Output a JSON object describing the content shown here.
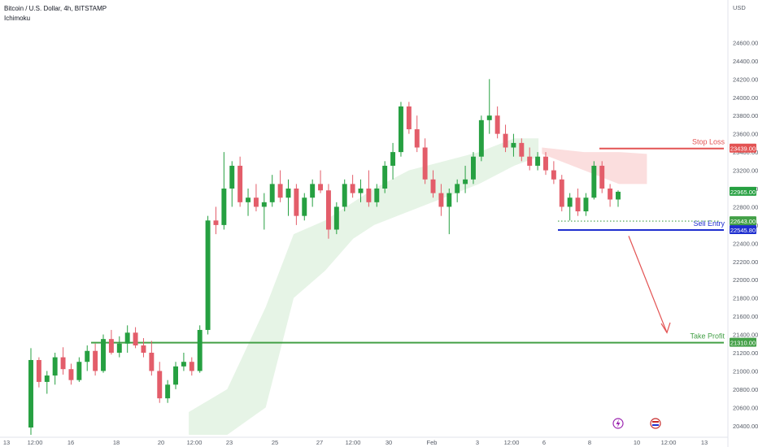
{
  "header": {
    "title": "Bitcoin / U.S. Dollar, 4h, BITSTAMP",
    "indicator": "Ichimoku"
  },
  "chart_data": {
    "type": "candlestick",
    "currency_label": "USD",
    "ylim": [
      20300,
      24800
    ],
    "y_ticks": [
      "24600.00",
      "24400.00",
      "24200.00",
      "24000.00",
      "23800.00",
      "23600.00",
      "23400.00",
      "23200.00",
      "23000.00",
      "22800.00",
      "22600.00",
      "22400.00",
      "22200.00",
      "22000.00",
      "21800.00",
      "21600.00",
      "21400.00",
      "21200.00",
      "21000.00",
      "20800.00",
      "20600.00",
      "20400.00"
    ],
    "x_ticks": [
      "13",
      "12:00",
      "16",
      "18",
      "20",
      "12:00",
      "23",
      "25",
      "27",
      "12:00",
      "30",
      "Feb",
      "3",
      "12:00",
      "6",
      "8",
      "10",
      "12:00",
      "13"
    ],
    "current_price": "22965.00",
    "levels": [
      {
        "name": "Stop Loss",
        "value": 23439.0,
        "tag": "23439.00",
        "color": "#e35353"
      },
      {
        "name": "Sell Entry",
        "value": 22545.8,
        "tag": "22545.80",
        "color": "#1f2fcf"
      },
      {
        "name": "Take Profit",
        "value": 21310.0,
        "tag": "21310.00",
        "color": "#43a047"
      }
    ],
    "dotted_level": {
      "value": 22643.0,
      "tag": "22643.00"
    },
    "colors": {
      "up": "#26a041",
      "down": "#e35d6a",
      "cloud_bull": "#e6f4e6",
      "cloud_bear": "#fbdede"
    },
    "candles": [
      [
        20380,
        21250,
        20300,
        21120
      ],
      [
        21120,
        21150,
        20820,
        20880
      ],
      [
        20880,
        21000,
        20750,
        20950
      ],
      [
        20950,
        21200,
        20850,
        21150
      ],
      [
        21150,
        21260,
        20960,
        21020
      ],
      [
        21020,
        21080,
        20850,
        20900
      ],
      [
        20900,
        21150,
        20880,
        21100
      ],
      [
        21100,
        21280,
        21000,
        21220
      ],
      [
        21220,
        21300,
        20950,
        21000
      ],
      [
        21000,
        21400,
        20980,
        21350
      ],
      [
        21350,
        21450,
        21180,
        21200
      ],
      [
        21200,
        21380,
        21150,
        21300
      ],
      [
        21300,
        21500,
        21200,
        21420
      ],
      [
        21420,
        21480,
        21250,
        21280
      ],
      [
        21280,
        21360,
        21150,
        21200
      ],
      [
        21200,
        21330,
        20950,
        21000
      ],
      [
        21000,
        21100,
        20650,
        20700
      ],
      [
        20700,
        20900,
        20650,
        20850
      ],
      [
        20850,
        21100,
        20800,
        21050
      ],
      [
        21050,
        21200,
        21000,
        21100
      ],
      [
        21100,
        21150,
        20950,
        21000
      ],
      [
        21000,
        21500,
        20980,
        21450
      ],
      [
        21450,
        22700,
        21400,
        22650
      ],
      [
        22650,
        22800,
        22500,
        22600
      ],
      [
        22600,
        23400,
        22550,
        23000
      ],
      [
        23000,
        23300,
        22800,
        23250
      ],
      [
        23250,
        23350,
        22800,
        22850
      ],
      [
        22850,
        23000,
        22700,
        22900
      ],
      [
        22900,
        23050,
        22750,
        22800
      ],
      [
        22800,
        22950,
        22550,
        22850
      ],
      [
        22850,
        23150,
        22800,
        23050
      ],
      [
        23050,
        23200,
        22850,
        22900
      ],
      [
        22900,
        23100,
        22700,
        23000
      ],
      [
        23000,
        23050,
        22600,
        22700
      ],
      [
        22700,
        22950,
        22650,
        22900
      ],
      [
        22900,
        23100,
        22800,
        23050
      ],
      [
        23050,
        23200,
        22950,
        22980
      ],
      [
        22980,
        23050,
        22450,
        22550
      ],
      [
        22550,
        22850,
        22500,
        22800
      ],
      [
        22800,
        23100,
        22750,
        23050
      ],
      [
        23050,
        23150,
        22900,
        22950
      ],
      [
        22950,
        23100,
        22850,
        23000
      ],
      [
        23000,
        23200,
        22800,
        22850
      ],
      [
        22850,
        23050,
        22800,
        23000
      ],
      [
        23000,
        23300,
        22950,
        23250
      ],
      [
        23250,
        23500,
        23100,
        23400
      ],
      [
        23400,
        23950,
        23350,
        23900
      ],
      [
        23900,
        23950,
        23600,
        23650
      ],
      [
        23650,
        23800,
        23400,
        23450
      ],
      [
        23450,
        23550,
        23050,
        23100
      ],
      [
        23100,
        23200,
        22900,
        22950
      ],
      [
        22950,
        23050,
        22700,
        22800
      ],
      [
        22800,
        23000,
        22500,
        22950
      ],
      [
        22950,
        23100,
        22850,
        23050
      ],
      [
        23050,
        23250,
        22950,
        23100
      ],
      [
        23100,
        23400,
        23050,
        23350
      ],
      [
        23350,
        23800,
        23300,
        23750
      ],
      [
        23750,
        24200,
        23600,
        23800
      ],
      [
        23800,
        23900,
        23550,
        23600
      ],
      [
        23600,
        23700,
        23400,
        23450
      ],
      [
        23450,
        23600,
        23350,
        23500
      ],
      [
        23500,
        23550,
        23300,
        23350
      ],
      [
        23350,
        23450,
        23200,
        23250
      ],
      [
        23250,
        23400,
        23200,
        23350
      ],
      [
        23350,
        23400,
        23150,
        23200
      ],
      [
        23200,
        23300,
        23050,
        23100
      ],
      [
        23100,
        23150,
        22750,
        22800
      ],
      [
        22800,
        22950,
        22650,
        22900
      ],
      [
        22900,
        23000,
        22700,
        22750
      ],
      [
        22750,
        22950,
        22700,
        22900
      ],
      [
        22900,
        23300,
        22880,
        23250
      ],
      [
        23250,
        23300,
        22950,
        23000
      ],
      [
        23000,
        23050,
        22800,
        22880
      ],
      [
        22880,
        22980,
        22800,
        22965
      ]
    ],
    "cloud": [
      {
        "x": 0.235,
        "lo": 20300,
        "hi": 20550
      },
      {
        "x": 0.29,
        "lo": 20300,
        "hi": 20800
      },
      {
        "x": 0.345,
        "lo": 20600,
        "hi": 21700
      },
      {
        "x": 0.385,
        "lo": 21800,
        "hi": 22500
      },
      {
        "x": 0.43,
        "lo": 22100,
        "hi": 22650
      },
      {
        "x": 0.47,
        "lo": 22450,
        "hi": 22850
      },
      {
        "x": 0.5,
        "lo": 22600,
        "hi": 23000
      },
      {
        "x": 0.55,
        "lo": 22750,
        "hi": 23200
      },
      {
        "x": 0.6,
        "lo": 22900,
        "hi": 23300
      },
      {
        "x": 0.65,
        "lo": 23050,
        "hi": 23400
      },
      {
        "x": 0.7,
        "lo": 23250,
        "hi": 23550
      },
      {
        "x": 0.735,
        "lo": 23350,
        "hi": 23550
      }
    ],
    "cloud_bear": [
      {
        "x": 0.74,
        "top": 23450,
        "bot": 23380
      },
      {
        "x": 0.8,
        "top": 23400,
        "bot": 23200
      },
      {
        "x": 0.85,
        "top": 23400,
        "bot": 23050
      },
      {
        "x": 0.89,
        "top": 23380,
        "bot": 23050
      }
    ]
  }
}
